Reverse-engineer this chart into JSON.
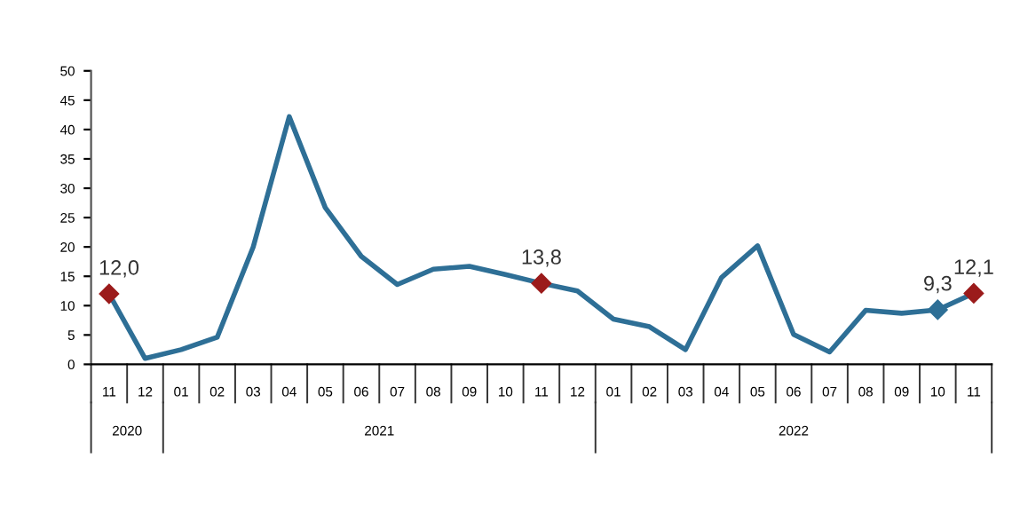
{
  "chart_data": {
    "type": "line",
    "categories": [
      "11",
      "12",
      "01",
      "02",
      "03",
      "04",
      "05",
      "06",
      "07",
      "08",
      "09",
      "10",
      "11",
      "12",
      "01",
      "02",
      "03",
      "04",
      "05",
      "06",
      "07",
      "08",
      "09",
      "10",
      "11"
    ],
    "series": [
      {
        "color": "#2e6f96",
        "values": [
          12.0,
          1.0,
          2.5,
          4.6,
          20,
          42.2,
          26.7,
          18.4,
          13.6,
          16.2,
          16.7,
          15.3,
          13.8,
          12.5,
          7.7,
          6.4,
          2.5,
          14.8,
          20.2,
          5.1,
          2.1,
          9.2,
          8.7,
          9.3,
          12.1
        ],
        "value_labels": [
          "12,0",
          null,
          null,
          null,
          null,
          null,
          null,
          null,
          null,
          null,
          null,
          null,
          "13,8",
          null,
          null,
          null,
          null,
          null,
          null,
          null,
          null,
          null,
          null,
          "9,3",
          "12,1"
        ],
        "colors": [
          "#9b1b1b",
          null,
          null,
          null,
          null,
          null,
          null,
          null,
          null,
          null,
          null,
          null,
          "#9b1b1b",
          null,
          null,
          null,
          null,
          null,
          null,
          null,
          null,
          null,
          null,
          "#2e6f96",
          "#9b1b1b"
        ]
      }
    ],
    "ylim": [
      0,
      50
    ],
    "yticks": [
      0,
      5,
      10,
      15,
      20,
      25,
      30,
      35,
      40,
      45,
      50
    ],
    "annotations": [
      "2020",
      "2021",
      "2022"
    ],
    "grid": false,
    "legend": false,
    "line_style": "solid"
  }
}
